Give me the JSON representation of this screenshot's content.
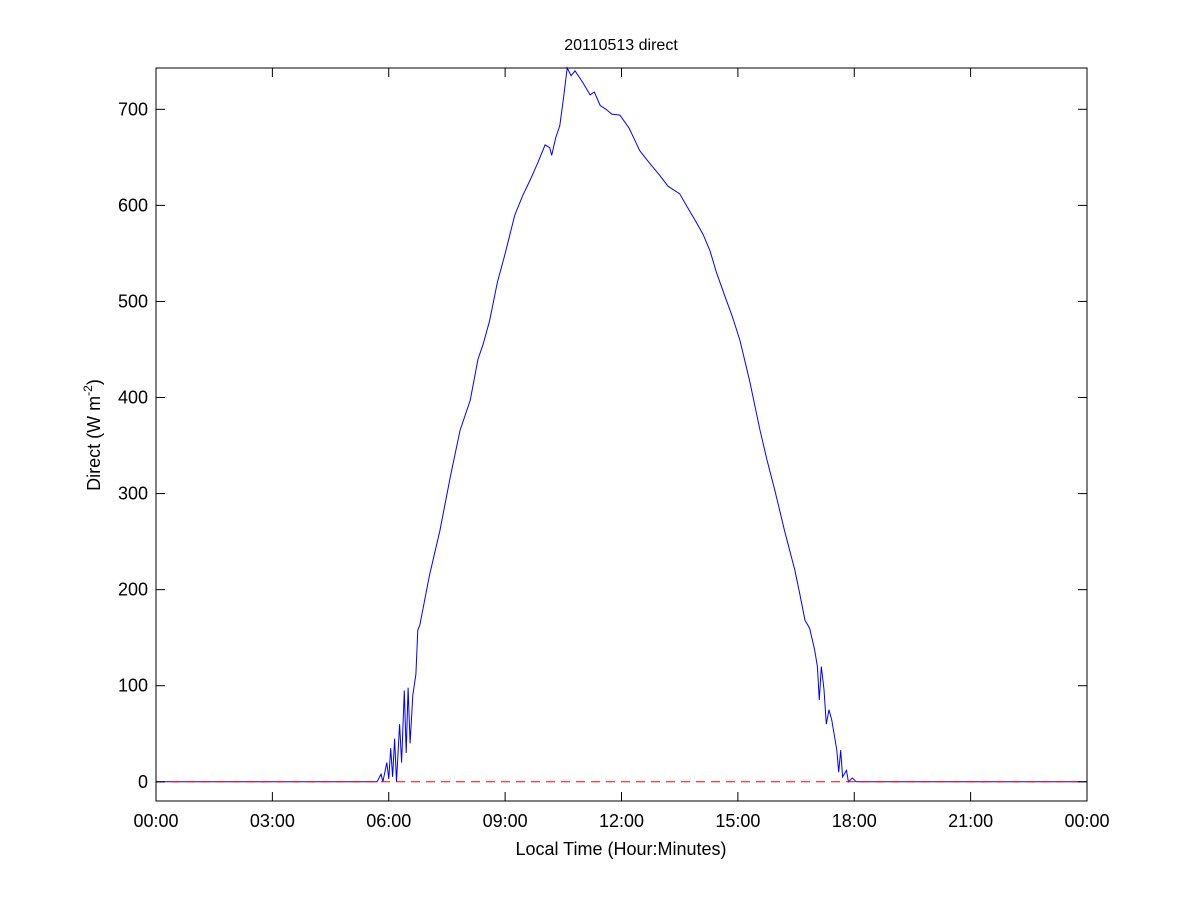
{
  "chart_data": {
    "type": "line",
    "title": "20110513 direct",
    "xlabel": "Local Time (Hour:Minutes)",
    "ylabel": "Direct (W m",
    "ylabel_sup": "-2",
    "ylabel_close": ")",
    "xlim_hours": [
      0,
      24
    ],
    "ylim": [
      -20,
      743
    ],
    "grid": false,
    "x_ticks": [
      {
        "hour": 0,
        "label": "00:00"
      },
      {
        "hour": 3,
        "label": "03:00"
      },
      {
        "hour": 6,
        "label": "06:00"
      },
      {
        "hour": 9,
        "label": "09:00"
      },
      {
        "hour": 12,
        "label": "12:00"
      },
      {
        "hour": 15,
        "label": "15:00"
      },
      {
        "hour": 18,
        "label": "18:00"
      },
      {
        "hour": 21,
        "label": "21:00"
      },
      {
        "hour": 24,
        "label": "00:00"
      }
    ],
    "y_ticks": [
      0,
      100,
      200,
      300,
      400,
      500,
      600,
      700
    ],
    "series": [
      {
        "color": "#0000ff",
        "style": "solid",
        "points": [
          [
            0,
            0
          ],
          [
            5.6,
            0
          ],
          [
            5.7,
            0
          ],
          [
            5.8,
            8
          ],
          [
            5.85,
            0
          ],
          [
            5.95,
            20
          ],
          [
            6.0,
            3
          ],
          [
            6.05,
            35
          ],
          [
            6.1,
            5
          ],
          [
            6.15,
            45
          ],
          [
            6.2,
            0
          ],
          [
            6.28,
            60
          ],
          [
            6.33,
            20
          ],
          [
            6.4,
            95
          ],
          [
            6.45,
            30
          ],
          [
            6.5,
            98
          ],
          [
            6.55,
            40
          ],
          [
            6.62,
            90
          ],
          [
            6.7,
            112
          ],
          [
            6.75,
            158
          ],
          [
            6.8,
            163
          ],
          [
            7.05,
            215
          ],
          [
            7.32,
            262
          ],
          [
            7.6,
            320
          ],
          [
            7.84,
            366
          ],
          [
            8.1,
            397
          ],
          [
            8.3,
            440
          ],
          [
            8.43,
            455
          ],
          [
            8.6,
            480
          ],
          [
            8.8,
            520
          ],
          [
            8.99,
            548
          ],
          [
            9.25,
            590
          ],
          [
            9.45,
            610
          ],
          [
            9.64,
            626
          ],
          [
            9.85,
            645
          ],
          [
            10.03,
            663
          ],
          [
            10.15,
            660
          ],
          [
            10.2,
            652
          ],
          [
            10.3,
            670
          ],
          [
            10.41,
            683
          ],
          [
            10.5,
            710
          ],
          [
            10.6,
            743
          ],
          [
            10.7,
            735
          ],
          [
            10.8,
            740
          ],
          [
            11.0,
            728
          ],
          [
            11.19,
            715
          ],
          [
            11.3,
            718
          ],
          [
            11.45,
            704
          ],
          [
            11.6,
            700
          ],
          [
            11.75,
            695
          ],
          [
            11.96,
            694
          ],
          [
            12.2,
            680
          ],
          [
            12.47,
            657
          ],
          [
            12.7,
            645
          ],
          [
            12.99,
            631
          ],
          [
            13.2,
            620
          ],
          [
            13.5,
            612
          ],
          [
            13.7,
            598
          ],
          [
            13.89,
            585
          ],
          [
            14.1,
            570
          ],
          [
            14.28,
            553
          ],
          [
            14.45,
            530
          ],
          [
            14.66,
            506
          ],
          [
            14.85,
            485
          ],
          [
            15.05,
            460
          ],
          [
            15.3,
            418
          ],
          [
            15.57,
            366
          ],
          [
            15.75,
            335
          ],
          [
            15.95,
            304
          ],
          [
            16.2,
            262
          ],
          [
            16.47,
            220
          ],
          [
            16.6,
            195
          ],
          [
            16.73,
            168
          ],
          [
            16.85,
            160
          ],
          [
            16.98,
            137
          ],
          [
            17.05,
            120
          ],
          [
            17.1,
            85
          ],
          [
            17.15,
            120
          ],
          [
            17.22,
            96
          ],
          [
            17.28,
            60
          ],
          [
            17.35,
            75
          ],
          [
            17.42,
            64
          ],
          [
            17.55,
            33
          ],
          [
            17.6,
            10
          ],
          [
            17.65,
            33
          ],
          [
            17.7,
            5
          ],
          [
            17.8,
            12
          ],
          [
            17.85,
            0
          ],
          [
            17.95,
            4
          ],
          [
            18.05,
            0
          ],
          [
            18.27,
            0
          ],
          [
            24,
            0
          ]
        ]
      },
      {
        "color": "#ff0000",
        "style": "dashed",
        "points": [
          [
            0,
            0
          ],
          [
            24,
            0
          ]
        ]
      }
    ]
  }
}
